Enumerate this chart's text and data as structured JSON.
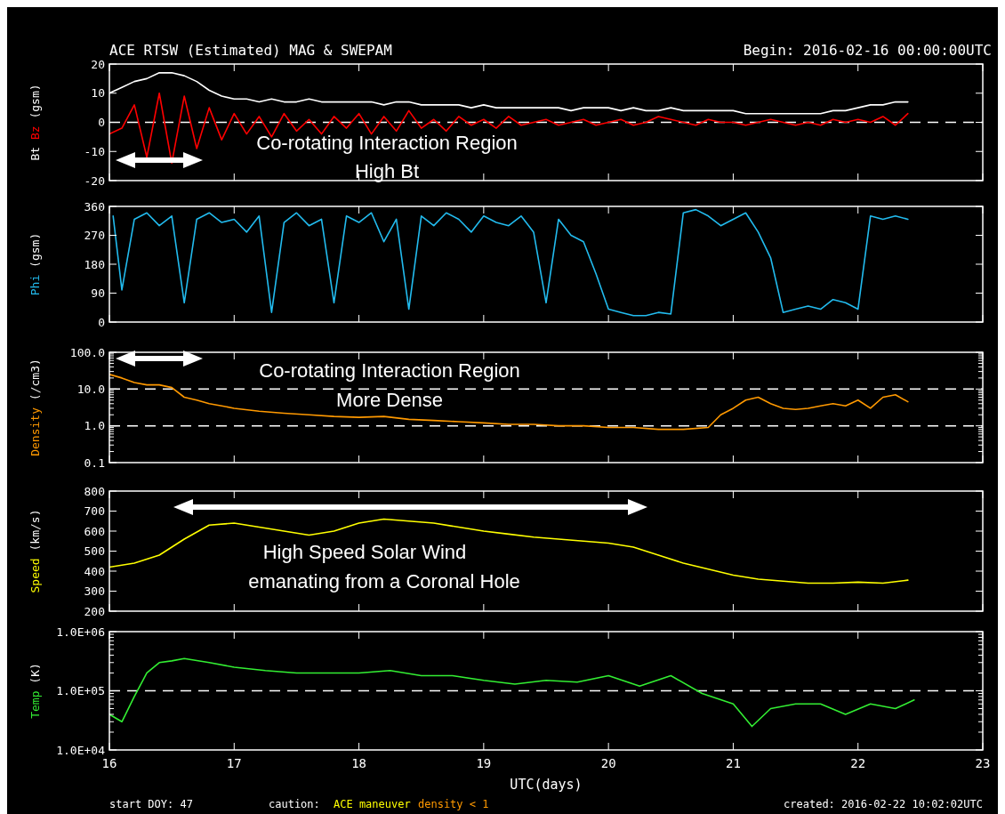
{
  "chart_data": [
    {
      "type": "line",
      "title": "ACE RTSW (Estimated) MAG & SWEPAM",
      "subtitle": "Begin: 2016-02-16 00:00:00UTC",
      "ylabel": "(gsm)",
      "xlim": [
        16,
        23
      ],
      "xticks": [
        16,
        17,
        18,
        19,
        20,
        21,
        22,
        23
      ],
      "ylim": [
        -20,
        20
      ],
      "yticks": [
        -20,
        -10,
        0,
        10,
        20
      ],
      "tick_labels": "y",
      "line_style": "solid",
      "ref_lines": [
        {
          "axis": "y",
          "value": 0,
          "color": "#ffffff",
          "line_style": "dashed"
        }
      ],
      "annotations": [
        "Co-rotating Interaction Region",
        "High Bt"
      ],
      "series": [
        {
          "name": "Bt",
          "color": "#ffffff",
          "x": [
            16,
            16.1,
            16.2,
            16.3,
            16.4,
            16.5,
            16.6,
            16.7,
            16.8,
            16.9,
            17,
            17.1,
            17.2,
            17.3,
            17.4,
            17.5,
            17.6,
            17.7,
            17.8,
            17.9,
            18,
            18.1,
            18.2,
            18.3,
            18.4,
            18.5,
            18.6,
            18.7,
            18.8,
            18.9,
            19,
            19.1,
            19.2,
            19.3,
            19.4,
            19.5,
            19.6,
            19.7,
            19.8,
            19.9,
            20,
            20.1,
            20.2,
            20.3,
            20.4,
            20.5,
            20.6,
            20.7,
            20.8,
            20.9,
            21,
            21.1,
            21.2,
            21.3,
            21.4,
            21.5,
            21.6,
            21.7,
            21.8,
            21.9,
            22,
            22.1,
            22.2,
            22.3,
            22.4
          ],
          "values": [
            10,
            12,
            14,
            15,
            17,
            17,
            16,
            14,
            11,
            9,
            8,
            8,
            7,
            8,
            7,
            7,
            8,
            7,
            7,
            7,
            7,
            7,
            6,
            7,
            7,
            6,
            6,
            6,
            6,
            5,
            6,
            5,
            5,
            5,
            5,
            5,
            5,
            4,
            5,
            5,
            5,
            4,
            5,
            4,
            4,
            5,
            4,
            4,
            4,
            4,
            4,
            3,
            3,
            3,
            3,
            3,
            3,
            3,
            4,
            4,
            5,
            6,
            6,
            7,
            7
          ]
        },
        {
          "name": "Bz",
          "color": "#ff0000",
          "x": [
            16,
            16.1,
            16.2,
            16.3,
            16.4,
            16.5,
            16.6,
            16.7,
            16.8,
            16.9,
            17,
            17.1,
            17.2,
            17.3,
            17.4,
            17.5,
            17.6,
            17.7,
            17.8,
            17.9,
            18,
            18.1,
            18.2,
            18.3,
            18.4,
            18.5,
            18.6,
            18.7,
            18.8,
            18.9,
            19,
            19.1,
            19.2,
            19.3,
            19.4,
            19.5,
            19.6,
            19.7,
            19.8,
            19.9,
            20,
            20.1,
            20.2,
            20.3,
            20.4,
            20.5,
            20.6,
            20.7,
            20.8,
            20.9,
            21,
            21.1,
            21.2,
            21.3,
            21.4,
            21.5,
            21.6,
            21.7,
            21.8,
            21.9,
            22,
            22.1,
            22.2,
            22.3,
            22.4
          ],
          "values": [
            -4,
            -2,
            6,
            -12,
            10,
            -14,
            9,
            -9,
            5,
            -6,
            3,
            -4,
            2,
            -5,
            3,
            -3,
            1,
            -4,
            2,
            -2,
            3,
            -4,
            2,
            -3,
            4,
            -2,
            1,
            -3,
            2,
            -1,
            1,
            -2,
            2,
            -1,
            0,
            1,
            -1,
            0,
            1,
            -1,
            0,
            1,
            -1,
            0,
            2,
            1,
            0,
            -1,
            1,
            0,
            0,
            -1,
            0,
            1,
            0,
            -1,
            0,
            -1,
            1,
            0,
            1,
            0,
            2,
            -1,
            3
          ]
        }
      ]
    },
    {
      "type": "line",
      "ylabel": "(gsm)",
      "xlim": [
        16,
        23
      ],
      "xticks": [
        16,
        17,
        18,
        19,
        20,
        21,
        22,
        23
      ],
      "ylim": [
        0,
        360
      ],
      "yticks": [
        0,
        90,
        180,
        270,
        360
      ],
      "tick_labels": "y",
      "line_style": "solid",
      "series": [
        {
          "name": "Phi",
          "color": "#22bbee",
          "x": [
            16.03,
            16.1,
            16.2,
            16.3,
            16.4,
            16.5,
            16.6,
            16.7,
            16.8,
            16.9,
            17,
            17.1,
            17.2,
            17.3,
            17.4,
            17.5,
            17.6,
            17.7,
            17.8,
            17.9,
            18,
            18.1,
            18.2,
            18.3,
            18.4,
            18.5,
            18.6,
            18.7,
            18.8,
            18.9,
            19,
            19.1,
            19.2,
            19.3,
            19.4,
            19.5,
            19.6,
            19.7,
            19.8,
            19.9,
            20,
            20.1,
            20.2,
            20.3,
            20.4,
            20.5,
            20.6,
            20.7,
            20.8,
            20.9,
            21,
            21.1,
            21.2,
            21.3,
            21.4,
            21.5,
            21.6,
            21.7,
            21.8,
            21.9,
            22,
            22.1,
            22.2,
            22.3,
            22.4
          ],
          "values": [
            330,
            100,
            320,
            340,
            300,
            330,
            60,
            320,
            340,
            310,
            320,
            280,
            330,
            30,
            310,
            340,
            300,
            320,
            60,
            330,
            310,
            340,
            250,
            320,
            40,
            330,
            300,
            340,
            320,
            280,
            330,
            310,
            300,
            330,
            280,
            60,
            320,
            270,
            250,
            150,
            40,
            30,
            20,
            20,
            30,
            25,
            340,
            350,
            330,
            300,
            320,
            340,
            280,
            200,
            30,
            40,
            50,
            40,
            70,
            60,
            40,
            330,
            320,
            330,
            320
          ]
        }
      ]
    },
    {
      "type": "line",
      "ylabel": "(/cm3)",
      "log": true,
      "xlim": [
        16,
        23
      ],
      "xticks": [
        16,
        17,
        18,
        19,
        20,
        21,
        22,
        23
      ],
      "ylim": [
        0.1,
        100
      ],
      "yticks": [
        0.1,
        {
          "value": 1,
          "label": "1.0"
        },
        {
          "value": 10,
          "label": "10.0"
        },
        {
          "value": 100,
          "label": "100.0"
        }
      ],
      "tick_labels": "y",
      "line_style": "solid",
      "ref_lines": [
        {
          "axis": "y",
          "value": 1,
          "color": "#ffffff",
          "line_style": "dashed"
        },
        {
          "axis": "y",
          "value": 10,
          "color": "#ffffff",
          "line_style": "dashed"
        }
      ],
      "annotations": [
        "Co-rotating Interaction Region",
        "More Dense"
      ],
      "series": [
        {
          "name": "Density",
          "color": "#ff9900",
          "x": [
            16,
            16.1,
            16.2,
            16.3,
            16.4,
            16.5,
            16.6,
            16.7,
            16.8,
            16.9,
            17,
            17.2,
            17.4,
            17.6,
            17.8,
            18,
            18.2,
            18.4,
            18.6,
            18.8,
            19,
            19.2,
            19.4,
            19.6,
            19.8,
            20,
            20.2,
            20.4,
            20.6,
            20.8,
            20.9,
            21,
            21.1,
            21.2,
            21.3,
            21.4,
            21.5,
            21.6,
            21.7,
            21.8,
            21.9,
            22,
            22.1,
            22.2,
            22.3,
            22.4
          ],
          "values": [
            25,
            20,
            15,
            13,
            13,
            11,
            6,
            5,
            4,
            3.5,
            3,
            2.5,
            2.2,
            2,
            1.8,
            1.7,
            1.8,
            1.5,
            1.4,
            1.3,
            1.2,
            1.1,
            1.1,
            1,
            1,
            0.9,
            0.9,
            0.8,
            0.8,
            0.9,
            2,
            3,
            5,
            6,
            4,
            3,
            2.8,
            3,
            3.5,
            4,
            3.5,
            5,
            3,
            6,
            7,
            4.5
          ]
        }
      ]
    },
    {
      "type": "line",
      "ylabel": "(km/s)",
      "xlim": [
        16,
        23
      ],
      "xticks": [
        16,
        17,
        18,
        19,
        20,
        21,
        22,
        23
      ],
      "ylim": [
        200,
        800
      ],
      "yticks": [
        200,
        300,
        400,
        500,
        600,
        700,
        800
      ],
      "tick_labels": "y",
      "line_style": "solid",
      "annotations": [
        "High Speed Solar Wind",
        "emanating from a Coronal Hole"
      ],
      "series": [
        {
          "name": "Speed",
          "color": "#ffff00",
          "x": [
            16,
            16.2,
            16.4,
            16.6,
            16.8,
            17,
            17.2,
            17.4,
            17.6,
            17.8,
            18,
            18.2,
            18.4,
            18.6,
            18.8,
            19,
            19.2,
            19.4,
            19.6,
            19.8,
            20,
            20.2,
            20.4,
            20.6,
            20.8,
            21,
            21.2,
            21.4,
            21.6,
            21.8,
            22,
            22.2,
            22.4
          ],
          "values": [
            420,
            440,
            480,
            560,
            630,
            640,
            620,
            600,
            580,
            600,
            640,
            660,
            650,
            640,
            620,
            600,
            585,
            570,
            560,
            550,
            540,
            520,
            480,
            440,
            410,
            380,
            360,
            350,
            340,
            340,
            345,
            340,
            355
          ]
        }
      ]
    },
    {
      "type": "line",
      "ylabel": "(K)",
      "xlabel": "UTC(days)",
      "log": true,
      "xlim": [
        16,
        23
      ],
      "xticks": [
        16,
        17,
        18,
        19,
        20,
        21,
        22,
        23
      ],
      "ylim": [
        10000,
        1000000
      ],
      "yticks": [
        {
          "value": 10000,
          "label": "1.0E+04"
        },
        {
          "value": 100000,
          "label": "1.0E+05"
        },
        {
          "value": 1000000,
          "label": "1.0E+06"
        }
      ],
      "line_style": "solid",
      "ref_lines": [
        {
          "axis": "y",
          "value": 100000,
          "color": "#ffffff",
          "line_style": "dashed"
        }
      ],
      "annotations": [
        "start DOY:  47",
        "caution:",
        "ACE maneuver",
        "density < 1",
        "created: 2016-02-22 10:02:02UTC"
      ],
      "series": [
        {
          "name": "Temp",
          "color": "#33ee33",
          "x": [
            16,
            16.1,
            16.2,
            16.3,
            16.4,
            16.5,
            16.6,
            16.8,
            17,
            17.25,
            17.5,
            17.75,
            18,
            18.25,
            18.5,
            18.75,
            19,
            19.25,
            19.5,
            19.75,
            20,
            20.25,
            20.5,
            20.75,
            21,
            21.15,
            21.3,
            21.5,
            21.7,
            21.9,
            22.1,
            22.3,
            22.45
          ],
          "values": [
            40000,
            30000,
            80000,
            200000,
            300000,
            320000,
            350000,
            300000,
            250000,
            220000,
            200000,
            200000,
            200000,
            220000,
            180000,
            180000,
            150000,
            130000,
            150000,
            140000,
            180000,
            120000,
            180000,
            90000,
            60000,
            25000,
            50000,
            60000,
            60000,
            40000,
            60000,
            50000,
            70000
          ]
        }
      ]
    }
  ]
}
